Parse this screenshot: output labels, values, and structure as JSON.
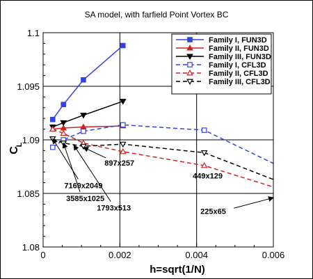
{
  "chart_data": {
    "type": "line",
    "title": "SA model, with farfield Point Vortex BC",
    "xlabel": "h=sqrt(1/N)",
    "ylabel_main": "C",
    "ylabel_sub": "L",
    "xlim": [
      0,
      0.006
    ],
    "ylim": [
      1.08,
      1.1
    ],
    "xticks": [
      0,
      0.002,
      0.004,
      0.006
    ],
    "xtick_labels": [
      "0",
      "0.002",
      "0.004",
      "0.006"
    ],
    "yticks": [
      1.08,
      1.085,
      1.09,
      1.095,
      1.1
    ],
    "ytick_labels": [
      "1.08",
      "1.085",
      "1.09",
      "1.095",
      "1.1"
    ],
    "grid": true,
    "legend_position": "top-right",
    "series": [
      {
        "name": "Family I, FUN3D",
        "color": "#3344dd",
        "dash": "solid",
        "marker": "square-filled",
        "x": [
          0.00025,
          0.00053,
          0.00105,
          0.00208
        ],
        "y": [
          1.0919,
          1.0933,
          1.0956,
          1.0988
        ]
      },
      {
        "name": "Family II, FUN3D",
        "color": "#cc2222",
        "dash": "solid",
        "marker": "triangle-up-filled",
        "x": [
          0.00025,
          0.00053,
          0.00105,
          0.00208
        ],
        "y": [
          1.091,
          1.0911,
          1.0912,
          1.0913
        ]
      },
      {
        "name": "Family III, FUN3D",
        "color": "#000000",
        "dash": "solid",
        "marker": "triangle-down-filled",
        "x": [
          0.00025,
          0.00053,
          0.00105,
          0.00208
        ],
        "y": [
          1.0912,
          1.0916,
          1.0923,
          1.0936
        ]
      },
      {
        "name": "Family I, CFL3D",
        "color": "#3344dd",
        "dash": "dashed",
        "marker": "square-open",
        "x": [
          0.00025,
          0.00053,
          0.00105,
          0.00208,
          0.0042,
          0.006
        ],
        "y": [
          1.0893,
          1.09,
          1.0908,
          1.0914,
          1.0909,
          1.0878
        ]
      },
      {
        "name": "Family II, CFL3D",
        "color": "#cc2222",
        "dash": "dashed",
        "marker": "triangle-up-open",
        "x": [
          0.00025,
          0.00053,
          0.00105,
          0.00208,
          0.0042,
          0.006
        ],
        "y": [
          1.091,
          1.0906,
          1.0897,
          1.0889,
          1.0876,
          1.0856
        ]
      },
      {
        "name": "Family III, CFL3D",
        "color": "#000000",
        "dash": "dashed",
        "marker": "triangle-down-open",
        "x": [
          0.00025,
          0.00053,
          0.00105,
          0.00208,
          0.0042,
          0.006
        ],
        "y": [
          1.0901,
          1.0897,
          1.0894,
          1.0896,
          1.0888,
          1.0863
        ]
      }
    ],
    "annotations": [
      {
        "text": "7169x2049",
        "x": 0.00055,
        "y": 1.0855,
        "arrow_to": [
          0.00025,
          1.0901
        ],
        "anchor": "start"
      },
      {
        "text": "3585x1025",
        "x": 0.0006,
        "y": 1.0843,
        "arrow_to": [
          0.00053,
          1.0897
        ],
        "anchor": "start"
      },
      {
        "text": "1793x513",
        "x": 0.0014,
        "y": 1.0834,
        "arrow_to": [
          0.0008,
          1.0895
        ],
        "anchor": "start"
      },
      {
        "text": "897x257",
        "x": 0.0016,
        "y": 1.0876,
        "arrow_to": [
          0.00105,
          1.0893
        ],
        "anchor": "start"
      },
      {
        "text": "449x129",
        "x": 0.0039,
        "y": 1.0864,
        "arrow_to": [
          0.0,
          0.0
        ],
        "anchor": "start"
      },
      {
        "text": "225x65",
        "x": 0.0041,
        "y": 1.0831,
        "arrow_to": [
          0.006,
          1.0846
        ],
        "anchor": "start"
      }
    ]
  }
}
